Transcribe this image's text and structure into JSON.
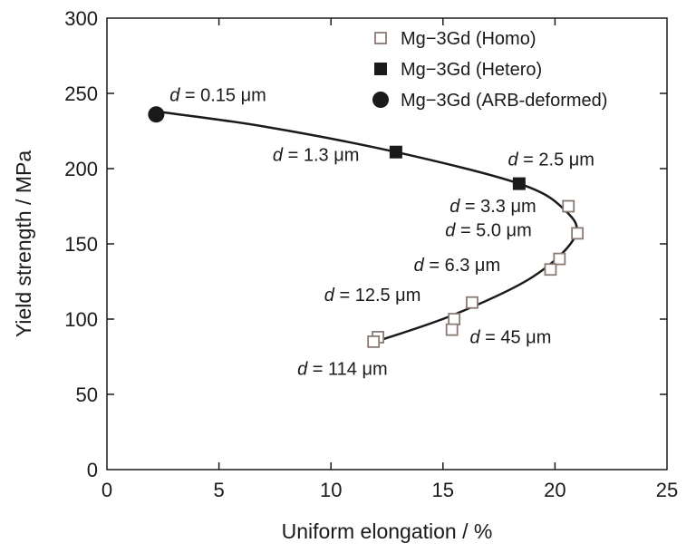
{
  "chart_data": {
    "type": "scatter",
    "title": "",
    "xlabel": "Uniform elongation / %",
    "ylabel": "Yield strength / MPa",
    "xlim": [
      0,
      25
    ],
    "ylim": [
      0,
      300
    ],
    "xticks": [
      0,
      5,
      10,
      15,
      20,
      25
    ],
    "yticks": [
      0,
      50,
      100,
      150,
      200,
      250,
      300
    ],
    "grid": false,
    "legend_position": "top-right",
    "series": [
      {
        "name": "Mg−3Gd (Homo)",
        "marker": "open-square",
        "color": "#8a7a74",
        "points": [
          {
            "x": 20.6,
            "y": 175
          },
          {
            "x": 21.0,
            "y": 157
          },
          {
            "x": 20.2,
            "y": 140
          },
          {
            "x": 19.8,
            "y": 133
          },
          {
            "x": 16.3,
            "y": 111
          },
          {
            "x": 15.5,
            "y": 100
          },
          {
            "x": 15.4,
            "y": 93
          },
          {
            "x": 12.1,
            "y": 88
          },
          {
            "x": 11.9,
            "y": 85
          }
        ]
      },
      {
        "name": "Mg−3Gd (Hetero)",
        "marker": "filled-square",
        "color": "#1a1a1a",
        "points": [
          {
            "x": 12.9,
            "y": 211
          },
          {
            "x": 18.4,
            "y": 190
          }
        ]
      },
      {
        "name": "Mg−3Gd (ARB-deformed)",
        "marker": "filled-circle",
        "color": "#1a1a1a",
        "points": [
          {
            "x": 2.2,
            "y": 236
          }
        ]
      }
    ],
    "trend_curve": [
      {
        "x": 12.0,
        "y": 85
      },
      {
        "x": 15.5,
        "y": 103
      },
      {
        "x": 19.0,
        "y": 128
      },
      {
        "x": 20.9,
        "y": 155
      },
      {
        "x": 20.4,
        "y": 173
      },
      {
        "x": 18.4,
        "y": 190
      },
      {
        "x": 12.9,
        "y": 211
      },
      {
        "x": 7.0,
        "y": 228
      },
      {
        "x": 2.2,
        "y": 238
      }
    ],
    "annotations": [
      {
        "prefix": "d",
        "text": " = 0.15 μm",
        "x": 2.8,
        "y": 245
      },
      {
        "prefix": "d",
        "text": " = 1.3 μm",
        "x": 7.4,
        "y": 205
      },
      {
        "prefix": "d",
        "text": " = 2.5 μm",
        "x": 17.9,
        "y": 202
      },
      {
        "prefix": "d",
        "text": " = 3.3 μm",
        "x": 15.3,
        "y": 171
      },
      {
        "prefix": "d",
        "text": " = 5.0 μm",
        "x": 15.1,
        "y": 155
      },
      {
        "prefix": "d",
        "text": " = 6.3 μm",
        "x": 13.7,
        "y": 132
      },
      {
        "prefix": "d",
        "text": " = 12.5 μm",
        "x": 9.7,
        "y": 112
      },
      {
        "prefix": "d",
        "text": " = 45 μm",
        "x": 16.2,
        "y": 84
      },
      {
        "prefix": "d",
        "text": " = 114 μm",
        "x": 8.5,
        "y": 63
      }
    ]
  }
}
